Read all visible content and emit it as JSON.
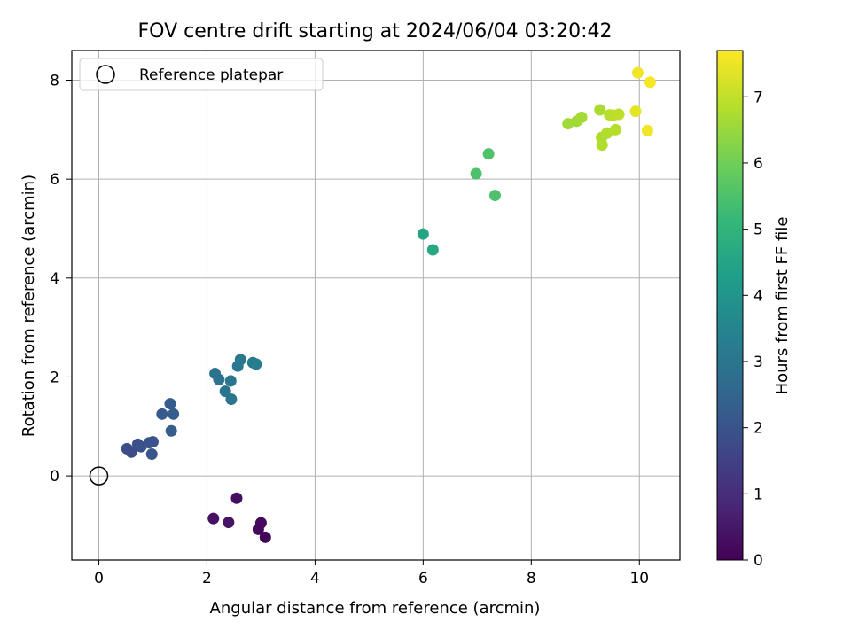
{
  "chart_data": {
    "type": "scatter",
    "title": "FOV centre drift starting at 2024/06/04 03:20:42",
    "xlabel": "Angular distance from reference (arcmin)",
    "ylabel": "Rotation from reference (arcmin)",
    "xlim": [
      -0.5,
      10.75
    ],
    "ylim": [
      -1.7,
      8.6
    ],
    "xticks": [
      0,
      2,
      4,
      6,
      8,
      10
    ],
    "yticks": [
      0,
      2,
      4,
      6,
      8
    ],
    "grid": true,
    "legend": {
      "position": "top-left",
      "entries": [
        {
          "label": "Reference platepar",
          "marker": "open-circle"
        }
      ]
    },
    "reference_point": {
      "x": 0,
      "y": 0
    },
    "colorbar": {
      "label": "Hours from first FF file",
      "colormap": "viridis",
      "range": [
        0,
        7.7
      ],
      "ticks": [
        0,
        1,
        2,
        3,
        4,
        5,
        6,
        7
      ]
    },
    "colormap_stops": [
      "#440154",
      "#482878",
      "#3e4989",
      "#31688e",
      "#26828e",
      "#1f9e89",
      "#35b779",
      "#6ece58",
      "#b5de2b",
      "#fde725"
    ],
    "points": [
      {
        "x": 2.55,
        "y": -0.45,
        "c": 0.3
      },
      {
        "x": 2.12,
        "y": -0.86,
        "c": 0.35
      },
      {
        "x": 2.4,
        "y": -0.94,
        "c": 0.4
      },
      {
        "x": 3.0,
        "y": -0.95,
        "c": 0.2
      },
      {
        "x": 2.95,
        "y": -1.08,
        "c": 0.15
      },
      {
        "x": 3.08,
        "y": -1.24,
        "c": 0.1
      },
      {
        "x": 0.52,
        "y": 0.55,
        "c": 1.8
      },
      {
        "x": 0.6,
        "y": 0.48,
        "c": 1.85
      },
      {
        "x": 0.72,
        "y": 0.64,
        "c": 1.9
      },
      {
        "x": 0.78,
        "y": 0.59,
        "c": 1.95
      },
      {
        "x": 0.93,
        "y": 0.67,
        "c": 2.0
      },
      {
        "x": 1.0,
        "y": 0.69,
        "c": 2.0
      },
      {
        "x": 0.98,
        "y": 0.44,
        "c": 2.05
      },
      {
        "x": 1.17,
        "y": 1.25,
        "c": 2.2
      },
      {
        "x": 1.32,
        "y": 1.46,
        "c": 2.3
      },
      {
        "x": 1.38,
        "y": 1.25,
        "c": 2.25
      },
      {
        "x": 1.34,
        "y": 0.91,
        "c": 2.3
      },
      {
        "x": 2.15,
        "y": 2.07,
        "c": 2.9
      },
      {
        "x": 2.22,
        "y": 1.95,
        "c": 2.9
      },
      {
        "x": 2.44,
        "y": 1.92,
        "c": 3.0
      },
      {
        "x": 2.34,
        "y": 1.71,
        "c": 2.95
      },
      {
        "x": 2.45,
        "y": 1.55,
        "c": 3.0
      },
      {
        "x": 2.57,
        "y": 2.22,
        "c": 3.1
      },
      {
        "x": 2.62,
        "y": 2.35,
        "c": 3.1
      },
      {
        "x": 2.85,
        "y": 2.29,
        "c": 3.15
      },
      {
        "x": 2.91,
        "y": 2.26,
        "c": 3.2
      },
      {
        "x": 6.0,
        "y": 4.89,
        "c": 4.5
      },
      {
        "x": 6.18,
        "y": 4.57,
        "c": 4.6
      },
      {
        "x": 6.98,
        "y": 6.11,
        "c": 5.5
      },
      {
        "x": 7.21,
        "y": 6.51,
        "c": 5.55
      },
      {
        "x": 7.33,
        "y": 5.67,
        "c": 5.5
      },
      {
        "x": 8.68,
        "y": 7.12,
        "c": 6.6
      },
      {
        "x": 8.84,
        "y": 7.17,
        "c": 6.6
      },
      {
        "x": 8.93,
        "y": 7.25,
        "c": 6.65
      },
      {
        "x": 9.27,
        "y": 7.4,
        "c": 6.7
      },
      {
        "x": 9.3,
        "y": 6.84,
        "c": 6.75
      },
      {
        "x": 9.31,
        "y": 6.69,
        "c": 6.8
      },
      {
        "x": 9.4,
        "y": 6.93,
        "c": 6.8
      },
      {
        "x": 9.45,
        "y": 7.3,
        "c": 6.85
      },
      {
        "x": 9.52,
        "y": 7.29,
        "c": 6.9
      },
      {
        "x": 9.56,
        "y": 7.0,
        "c": 6.85
      },
      {
        "x": 9.62,
        "y": 7.31,
        "c": 6.95
      },
      {
        "x": 9.93,
        "y": 7.37,
        "c": 7.4
      },
      {
        "x": 9.97,
        "y": 8.15,
        "c": 7.55
      },
      {
        "x": 10.2,
        "y": 7.96,
        "c": 7.6
      },
      {
        "x": 10.15,
        "y": 6.98,
        "c": 7.55
      }
    ]
  }
}
